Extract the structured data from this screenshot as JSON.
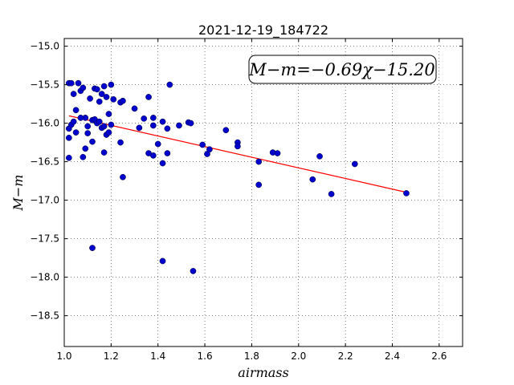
{
  "chart_data": {
    "type": "scatter",
    "title": "2021-12-19_184722",
    "xlabel": "airmass",
    "ylabel": "M−m",
    "xlim": [
      1.0,
      2.7
    ],
    "ylim": [
      -18.9,
      -14.9
    ],
    "y_inverted": true,
    "grid": true,
    "x_ticks": [
      "1.0",
      "1.2",
      "1.4",
      "1.6",
      "1.8",
      "2.0",
      "2.2",
      "2.4",
      "2.6"
    ],
    "y_ticks": [
      "−15.0",
      "−15.5",
      "−16.0",
      "−16.5",
      "−17.0",
      "−17.5",
      "−18.0",
      "−18.5"
    ],
    "annotation": "M−m=−0.69χ−15.20",
    "fit_line": {
      "slope": -0.69,
      "intercept": -15.2,
      "x_range": [
        1.02,
        2.46
      ],
      "color": "#ff0000"
    },
    "point_color": "#0000cc",
    "points": [
      [
        1.02,
        -15.48
      ],
      [
        1.03,
        -15.48
      ],
      [
        1.04,
        -15.62
      ],
      [
        1.05,
        -15.83
      ],
      [
        1.06,
        -15.48
      ],
      [
        1.07,
        -15.58
      ],
      [
        1.08,
        -15.54
      ],
      [
        1.09,
        -15.93
      ],
      [
        1.1,
        -16.13
      ],
      [
        1.11,
        -15.68
      ],
      [
        1.12,
        -15.96
      ],
      [
        1.13,
        -15.55
      ],
      [
        1.14,
        -15.56
      ],
      [
        1.15,
        -15.72
      ],
      [
        1.16,
        -15.62
      ],
      [
        1.17,
        -15.52
      ],
      [
        1.18,
        -15.66
      ],
      [
        1.19,
        -15.88
      ],
      [
        1.2,
        -15.5
      ],
      [
        1.21,
        -15.69
      ],
      [
        1.02,
        -16.45
      ],
      [
        1.02,
        -16.07
      ],
      [
        1.03,
        -16.02
      ],
      [
        1.02,
        -16.19
      ],
      [
        1.04,
        -15.98
      ],
      [
        1.05,
        -16.12
      ],
      [
        1.07,
        -15.93
      ],
      [
        1.08,
        -16.44
      ],
      [
        1.09,
        -16.33
      ],
      [
        1.1,
        -16.04
      ],
      [
        1.12,
        -16.24
      ],
      [
        1.13,
        -15.95
      ],
      [
        1.14,
        -16.0
      ],
      [
        1.15,
        -15.98
      ],
      [
        1.16,
        -16.06
      ],
      [
        1.17,
        -16.04
      ],
      [
        1.18,
        -16.15
      ],
      [
        1.19,
        -16.12
      ],
      [
        1.2,
        -16.02
      ],
      [
        1.17,
        -16.38
      ],
      [
        1.24,
        -15.73
      ],
      [
        1.25,
        -15.71
      ],
      [
        1.24,
        -16.25
      ],
      [
        1.25,
        -16.7
      ],
      [
        1.3,
        -15.81
      ],
      [
        1.32,
        -16.06
      ],
      [
        1.34,
        -15.94
      ],
      [
        1.36,
        -15.66
      ],
      [
        1.38,
        -15.93
      ],
      [
        1.38,
        -16.03
      ],
      [
        1.38,
        -16.42
      ],
      [
        1.36,
        -16.39
      ],
      [
        1.4,
        -16.27
      ],
      [
        1.42,
        -15.98
      ],
      [
        1.42,
        -16.52
      ],
      [
        1.44,
        -16.39
      ],
      [
        1.44,
        -16.07
      ],
      [
        1.45,
        -15.5
      ],
      [
        1.49,
        -16.03
      ],
      [
        1.53,
        -15.99
      ],
      [
        1.54,
        -16.0
      ],
      [
        1.59,
        -16.28
      ],
      [
        1.61,
        -16.4
      ],
      [
        1.62,
        -16.34
      ],
      [
        1.69,
        -16.09
      ],
      [
        1.74,
        -16.25
      ],
      [
        1.74,
        -16.3
      ],
      [
        1.83,
        -16.5
      ],
      [
        1.83,
        -16.8
      ],
      [
        1.89,
        -16.38
      ],
      [
        1.91,
        -16.39
      ],
      [
        2.06,
        -16.73
      ],
      [
        2.09,
        -16.43
      ],
      [
        2.14,
        -16.92
      ],
      [
        2.24,
        -16.53
      ],
      [
        2.46,
        -16.91
      ],
      [
        1.12,
        -17.62
      ],
      [
        1.42,
        -17.79
      ],
      [
        1.55,
        -17.92
      ]
    ]
  }
}
